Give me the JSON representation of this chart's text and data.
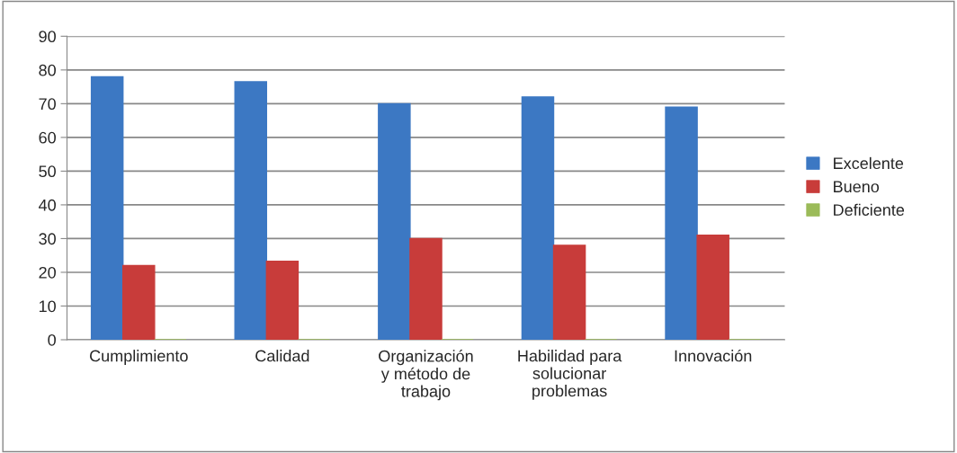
{
  "chart_data": {
    "type": "bar",
    "categories": [
      "Cumplimiento",
      "Calidad",
      "Organización y método de trabajo",
      "Habilidad para solucionar problemas",
      "Innovación"
    ],
    "series": [
      {
        "name": "Excelente",
        "color": "#3c78c3",
        "values": [
          78,
          76.5,
          70,
          72,
          69
        ]
      },
      {
        "name": "Bueno",
        "color": "#c83c3a",
        "values": [
          22,
          23.3,
          30,
          28,
          31
        ]
      },
      {
        "name": "Deficiente",
        "color": "#9bbb59",
        "values": [
          0,
          0,
          0,
          0,
          0
        ]
      }
    ],
    "ylim": [
      0,
      90
    ],
    "yticks": [
      0,
      10,
      20,
      30,
      40,
      50,
      60,
      70,
      80,
      90
    ],
    "grid": "y",
    "legend": "right"
  }
}
